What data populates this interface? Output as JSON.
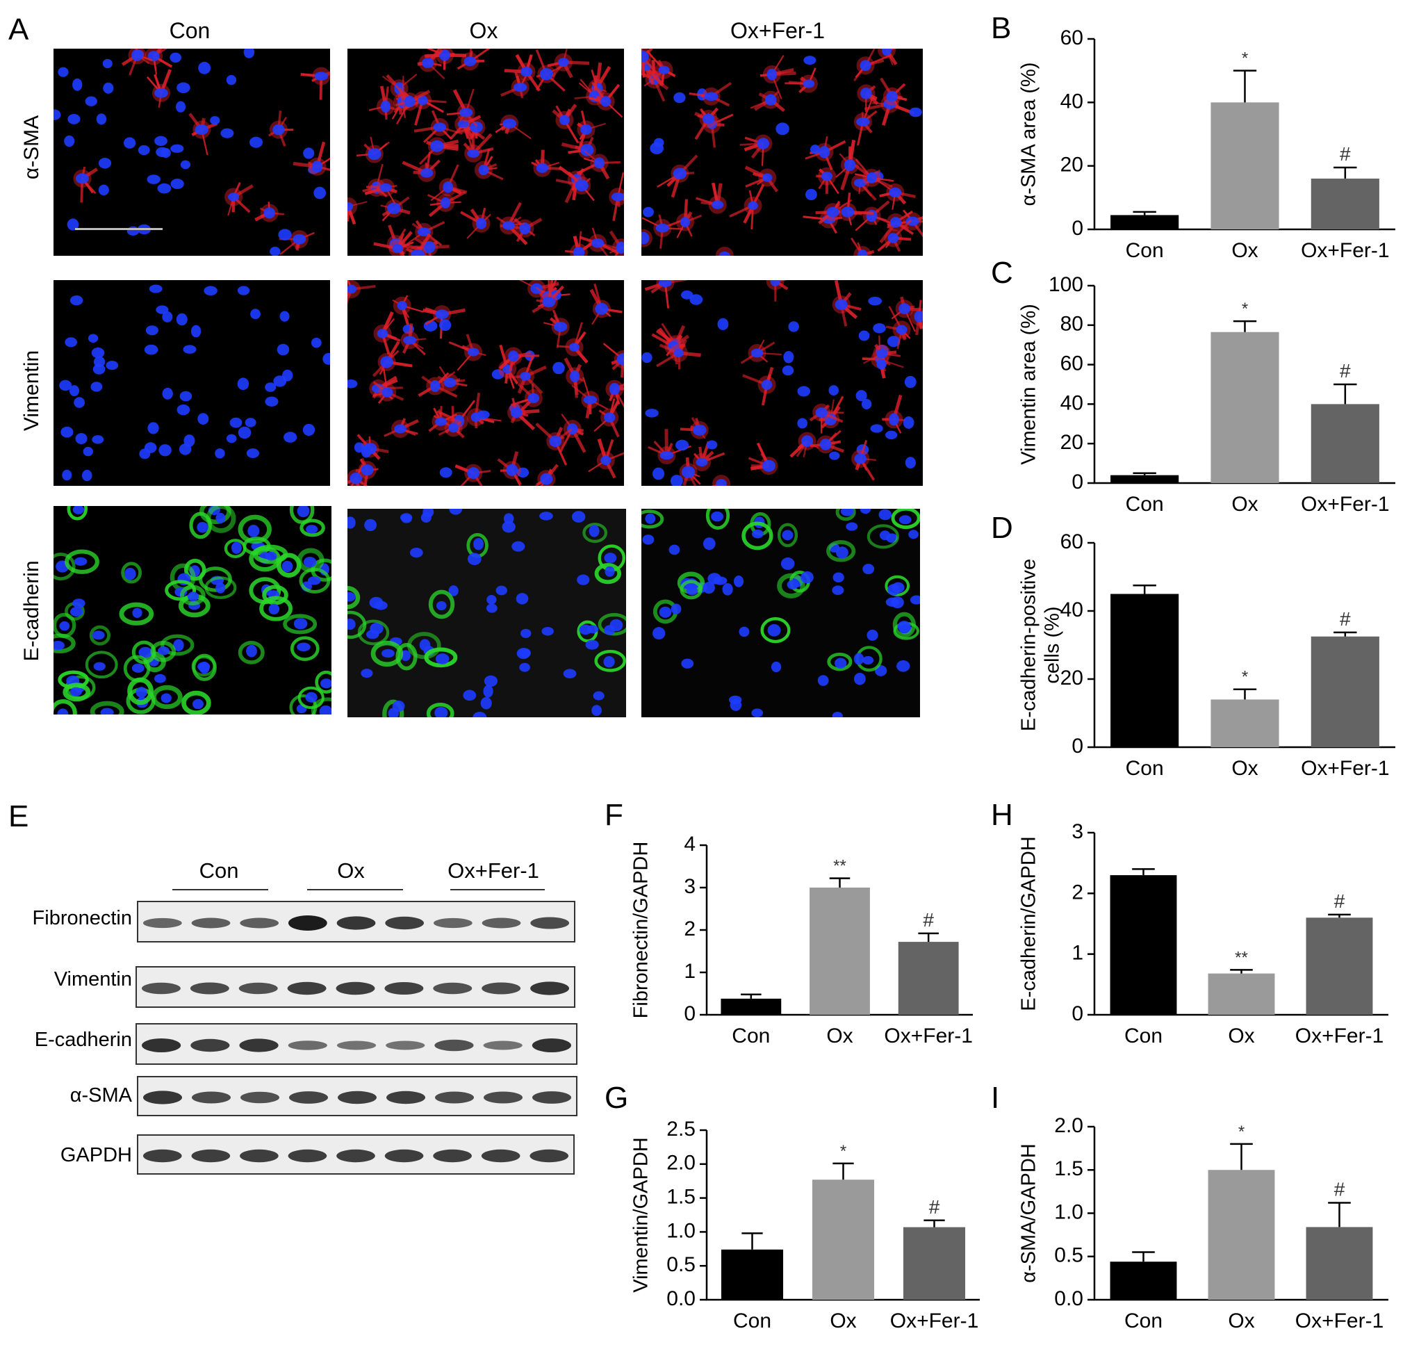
{
  "panel_letters": {
    "A": "A",
    "B": "B",
    "C": "C",
    "D": "D",
    "E": "E",
    "F": "F",
    "G": "G",
    "H": "H",
    "I": "I"
  },
  "microscopy": {
    "columns": [
      "Con",
      "Ox",
      "Ox+Fer-1"
    ],
    "rows": [
      "α-SMA",
      "Vimentin",
      "E-cadherin"
    ],
    "stain_colors": {
      "nuclei": "#1e3cff",
      "alpha_sma": "#e0202a",
      "vimentin": "#e0202a",
      "e_cadherin": "#2ad62a"
    }
  },
  "western_blot": {
    "groups": [
      "Con",
      "Ox",
      "Ox+Fer-1"
    ],
    "proteins": [
      "Fibronectin",
      "Vimentin",
      "E-cadherin",
      "α-SMA",
      "GAPDH"
    ],
    "band_intensity": [
      [
        0.45,
        0.5,
        0.5,
        1.0,
        0.8,
        0.75,
        0.45,
        0.5,
        0.65
      ],
      [
        0.6,
        0.65,
        0.6,
        0.75,
        0.75,
        0.72,
        0.6,
        0.65,
        0.8
      ],
      [
        0.85,
        0.75,
        0.8,
        0.4,
        0.35,
        0.35,
        0.6,
        0.35,
        0.85
      ],
      [
        0.8,
        0.65,
        0.6,
        0.7,
        0.75,
        0.75,
        0.65,
        0.65,
        0.7
      ],
      [
        0.75,
        0.75,
        0.75,
        0.75,
        0.75,
        0.75,
        0.75,
        0.75,
        0.75
      ]
    ]
  },
  "chart_data": [
    {
      "id": "B",
      "type": "bar",
      "categories": [
        "Con",
        "Ox",
        "Ox+Fer-1"
      ],
      "values": [
        4.5,
        40,
        16
      ],
      "errors": [
        1,
        10,
        3.5
      ],
      "ylabel": "α-SMA area (%)",
      "ylim": [
        0,
        60
      ],
      "ticks": [
        0,
        20,
        40,
        60
      ],
      "annotations": [
        "",
        "*",
        "#"
      ],
      "colors": [
        "#000000",
        "#9a9a9a",
        "#646464"
      ]
    },
    {
      "id": "C",
      "type": "bar",
      "categories": [
        "Con",
        "Ox",
        "Ox+Fer-1"
      ],
      "values": [
        4,
        76.5,
        40
      ],
      "errors": [
        1,
        5.5,
        10
      ],
      "ylabel": "Vimentin area (%)",
      "ylim": [
        0,
        100
      ],
      "ticks": [
        0,
        20,
        40,
        60,
        80,
        100
      ],
      "annotations": [
        "",
        "*",
        "#"
      ],
      "colors": [
        "#000000",
        "#9a9a9a",
        "#646464"
      ]
    },
    {
      "id": "D",
      "type": "bar",
      "categories": [
        "Con",
        "Ox",
        "Ox+Fer-1"
      ],
      "values": [
        45,
        14,
        32.5
      ],
      "errors": [
        2.5,
        3,
        1.2
      ],
      "ylabel": "E-cadherin-positive cells (%)",
      "ylabel_lines": [
        "E-cadherin-positive",
        "cells (%)"
      ],
      "ylim": [
        0,
        60
      ],
      "ticks": [
        0,
        20,
        40,
        60
      ],
      "annotations": [
        "",
        "*",
        "#"
      ],
      "colors": [
        "#000000",
        "#9a9a9a",
        "#646464"
      ]
    },
    {
      "id": "F",
      "type": "bar",
      "categories": [
        "Con",
        "Ox",
        "Ox+Fer-1"
      ],
      "values": [
        0.38,
        3.0,
        1.72
      ],
      "errors": [
        0.1,
        0.22,
        0.2
      ],
      "ylabel": "Fibronectin/GAPDH",
      "ylim": [
        0,
        4
      ],
      "ticks": [
        0,
        1,
        2,
        3,
        4
      ],
      "annotations": [
        "",
        "**",
        "#"
      ],
      "colors": [
        "#000000",
        "#9a9a9a",
        "#646464"
      ]
    },
    {
      "id": "G",
      "type": "bar",
      "categories": [
        "Con",
        "Ox",
        "Ox+Fer-1"
      ],
      "values": [
        0.74,
        1.77,
        1.07
      ],
      "errors": [
        0.24,
        0.24,
        0.1
      ],
      "ylabel": "Vimentin/GAPDH",
      "ylim": [
        0,
        2.5
      ],
      "ticks": [
        0,
        0.5,
        1,
        1.5,
        2,
        2.5
      ],
      "tick_labels": [
        "0.0",
        "0.5",
        "1.0",
        "1.5",
        "2.0",
        "2.5"
      ],
      "annotations": [
        "",
        "*",
        "#"
      ],
      "colors": [
        "#000000",
        "#9a9a9a",
        "#646464"
      ]
    },
    {
      "id": "H",
      "type": "bar",
      "categories": [
        "Con",
        "Ox",
        "Ox+Fer-1"
      ],
      "values": [
        2.3,
        0.68,
        1.6
      ],
      "errors": [
        0.1,
        0.06,
        0.05
      ],
      "ylabel": "E-cadherin/GAPDH",
      "ylim": [
        0,
        3
      ],
      "ticks": [
        0,
        1,
        2,
        3
      ],
      "annotations": [
        "",
        "**",
        "#"
      ],
      "colors": [
        "#000000",
        "#9a9a9a",
        "#646464"
      ]
    },
    {
      "id": "I",
      "type": "bar",
      "categories": [
        "Con",
        "Ox",
        "Ox+Fer-1"
      ],
      "values": [
        0.44,
        1.5,
        0.84
      ],
      "errors": [
        0.11,
        0.3,
        0.28
      ],
      "ylabel": "α-SMA/GAPDH",
      "ylim": [
        0,
        2
      ],
      "ticks": [
        0,
        0.5,
        1,
        1.5,
        2
      ],
      "tick_labels": [
        "0.0",
        "0.5",
        "1.0",
        "1.5",
        "2.0"
      ],
      "annotations": [
        "",
        "*",
        "#"
      ],
      "colors": [
        "#000000",
        "#9a9a9a",
        "#646464"
      ]
    }
  ]
}
